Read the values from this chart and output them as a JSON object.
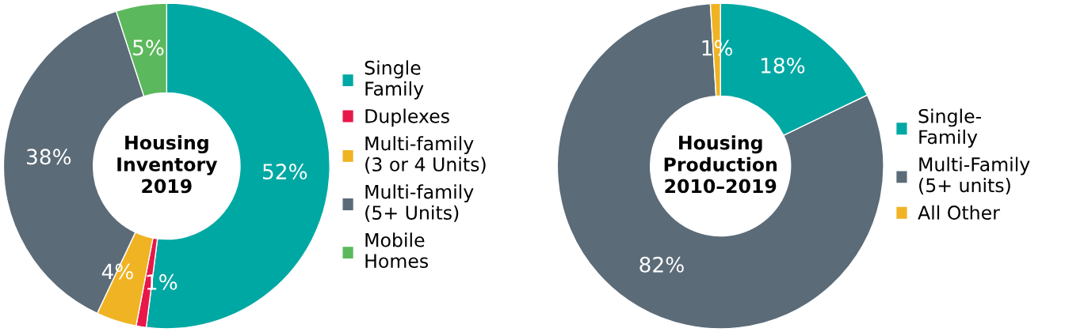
{
  "chart_data": [
    {
      "type": "donut",
      "title": "Housing\nInventory\n2019",
      "categories": [
        "Single\nFamily",
        "Duplexes",
        "Multi-family\n(3 or 4 Units)",
        "Multi-family\n(5+ Units)",
        "Mobile\nHomes"
      ],
      "values": [
        52,
        1,
        4,
        38,
        5
      ],
      "colors": [
        "#00a8a3",
        "#e8174a",
        "#f0b323",
        "#5b6b78",
        "#5cb85c"
      ],
      "value_labels": [
        "52%",
        "1%",
        "4%",
        "38%",
        "5%"
      ],
      "legend": "right"
    },
    {
      "type": "donut",
      "title": "Housing\nProduction\n2010–2019",
      "categories": [
        "Single-\nFamily",
        "Multi-Family\n(5+ units)",
        "All Other"
      ],
      "values": [
        18,
        82,
        1
      ],
      "colors": [
        "#00a8a3",
        "#5b6b78",
        "#f0b323"
      ],
      "value_labels": [
        "18%",
        "82%",
        "1%"
      ],
      "legend": "right"
    }
  ]
}
